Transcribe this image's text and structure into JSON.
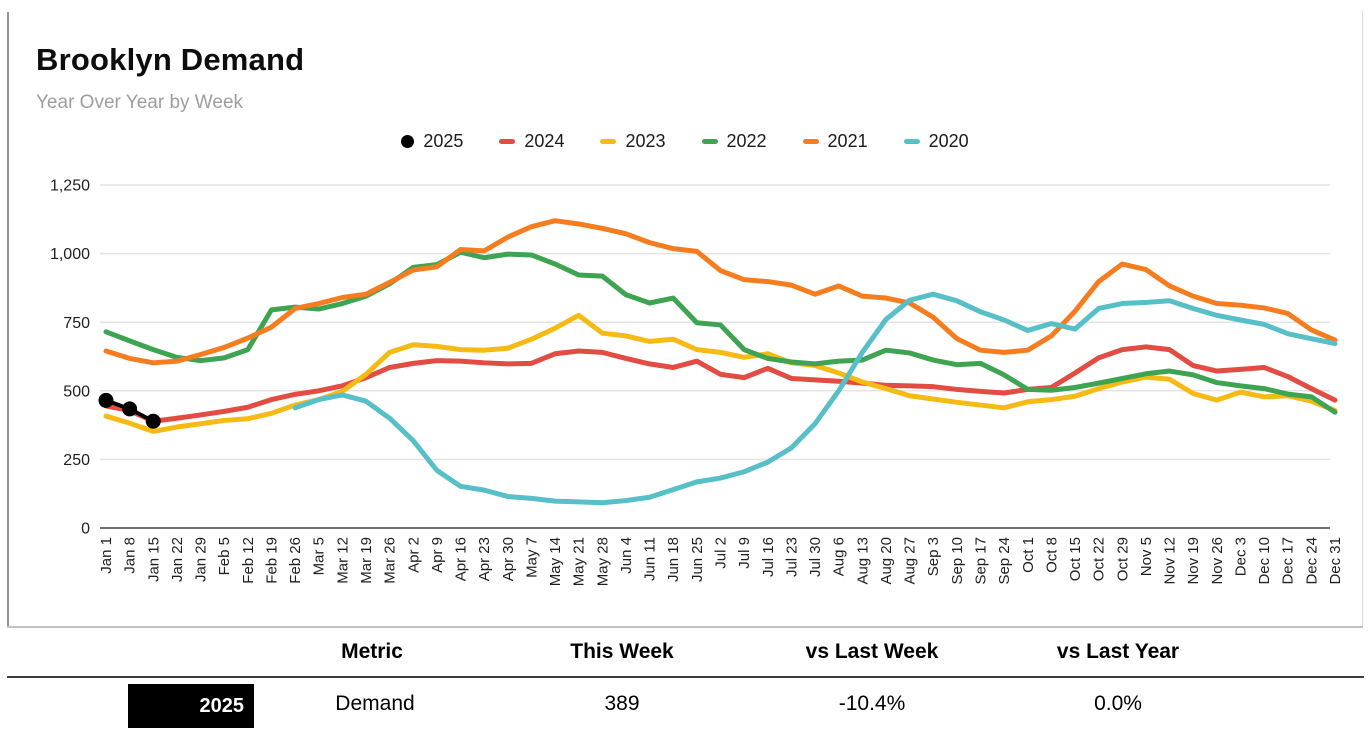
{
  "card": {
    "title": "Brooklyn Demand",
    "subtitle": "Year Over Year by Week"
  },
  "colors": {
    "y2025": "#000000",
    "y2024": "#e24c42",
    "y2023": "#f5ba14",
    "y2022": "#3fa452",
    "y2021": "#f57d20",
    "y2020": "#56bfc8",
    "gridline": "#e4e4e4",
    "axis": "#6e6e6e",
    "tick_text": "#1f1f1f"
  },
  "chart_data": {
    "type": "line",
    "title": "Brooklyn Demand",
    "subtitle": "Year Over Year by Week",
    "grid": "horizontal",
    "legend_position": "top-center",
    "ylim": [
      0,
      1250
    ],
    "y_ticks": [
      {
        "value": 0,
        "label": "0"
      },
      {
        "value": 250,
        "label": "250"
      },
      {
        "value": 500,
        "label": "500"
      },
      {
        "value": 750,
        "label": "750"
      },
      {
        "value": 1000,
        "label": "1,000"
      },
      {
        "value": 1250,
        "label": "1,250"
      }
    ],
    "x_labels": [
      "Jan 1",
      "Jan 8",
      "Jan 15",
      "Jan 22",
      "Jan 29",
      "Feb 5",
      "Feb 12",
      "Feb 19",
      "Feb 26",
      "Mar 5",
      "Mar 12",
      "Mar 19",
      "Mar 26",
      "Apr 2",
      "Apr 9",
      "Apr 16",
      "Apr 23",
      "Apr 30",
      "May 7",
      "May 14",
      "May 21",
      "May 28",
      "Jun 4",
      "Jun 11",
      "Jun 18",
      "Jun 25",
      "Jul 2",
      "Jul 9",
      "Jul 16",
      "Jul 23",
      "Jul 30",
      "Aug 6",
      "Aug 13",
      "Aug 20",
      "Aug 27",
      "Sep 3",
      "Sep 10",
      "Sep 17",
      "Sep 24",
      "Oct 1",
      "Oct 8",
      "Oct 15",
      "Oct 22",
      "Oct 29",
      "Nov 5",
      "Nov 12",
      "Nov 19",
      "Nov 26",
      "Dec 3",
      "Dec 10",
      "Dec 17",
      "Dec 24",
      "Dec 31"
    ],
    "series": [
      {
        "name": "2025",
        "color": "#000000",
        "marker": "circle",
        "draw_points": true,
        "values": [
          465,
          434,
          389,
          null,
          null,
          null,
          null,
          null,
          null,
          null,
          null,
          null,
          null,
          null,
          null,
          null,
          null,
          null,
          null,
          null,
          null,
          null,
          null,
          null,
          null,
          null,
          null,
          null,
          null,
          null,
          null,
          null,
          null,
          null,
          null,
          null,
          null,
          null,
          null,
          null,
          null,
          null,
          null,
          null,
          null,
          null,
          null,
          null,
          null,
          null,
          null,
          null,
          null
        ]
      },
      {
        "name": "2024",
        "color": "#e24c42",
        "marker": "dash",
        "draw_points": false,
        "values": [
          445,
          428,
          389,
          400,
          412,
          425,
          440,
          468,
          487,
          500,
          518,
          548,
          585,
          600,
          610,
          608,
          602,
          598,
          600,
          635,
          645,
          640,
          618,
          598,
          585,
          608,
          560,
          548,
          582,
          545,
          540,
          535,
          528,
          520,
          518,
          515,
          505,
          498,
          492,
          505,
          512,
          565,
          620,
          650,
          660,
          650,
          592,
          572,
          578,
          585,
          552,
          508,
          466
        ]
      },
      {
        "name": "2023",
        "color": "#f5ba14",
        "marker": "dash",
        "draw_points": false,
        "values": [
          408,
          382,
          352,
          368,
          380,
          392,
          398,
          418,
          448,
          468,
          498,
          560,
          640,
          668,
          662,
          650,
          648,
          655,
          688,
          728,
          775,
          710,
          700,
          680,
          688,
          650,
          640,
          622,
          635,
          602,
          592,
          565,
          532,
          508,
          482,
          470,
          458,
          448,
          438,
          460,
          468,
          480,
          508,
          532,
          550,
          542,
          490,
          466,
          495,
          478,
          482,
          462,
          428
        ]
      },
      {
        "name": "2022",
        "color": "#3fa452",
        "marker": "dash",
        "draw_points": false,
        "values": [
          715,
          682,
          650,
          622,
          610,
          620,
          650,
          795,
          805,
          798,
          818,
          845,
          890,
          950,
          960,
          1005,
          985,
          998,
          995,
          962,
          922,
          918,
          850,
          820,
          838,
          748,
          740,
          650,
          618,
          605,
          598,
          608,
          612,
          648,
          638,
          612,
          595,
          600,
          558,
          505,
          502,
          512,
          528,
          545,
          562,
          572,
          558,
          530,
          518,
          508,
          488,
          478,
          422
        ]
      },
      {
        "name": "2021",
        "color": "#f57d20",
        "marker": "dash",
        "draw_points": false,
        "values": [
          645,
          618,
          602,
          608,
          632,
          658,
          692,
          732,
          800,
          818,
          840,
          852,
          895,
          940,
          952,
          1015,
          1010,
          1060,
          1098,
          1120,
          1108,
          1092,
          1072,
          1040,
          1018,
          1008,
          938,
          905,
          898,
          885,
          852,
          882,
          845,
          838,
          820,
          768,
          690,
          648,
          640,
          648,
          700,
          790,
          898,
          962,
          942,
          882,
          845,
          818,
          812,
          802,
          782,
          722,
          685
        ]
      },
      {
        "name": "2020",
        "color": "#56bfc8",
        "marker": "dash",
        "draw_points": false,
        "values": [
          null,
          null,
          null,
          null,
          null,
          null,
          null,
          null,
          438,
          468,
          485,
          462,
          400,
          318,
          210,
          152,
          138,
          115,
          108,
          98,
          95,
          92,
          100,
          112,
          140,
          168,
          182,
          205,
          240,
          292,
          380,
          500,
          640,
          760,
          830,
          852,
          828,
          788,
          758,
          720,
          745,
          725,
          800,
          818,
          822,
          828,
          800,
          775,
          758,
          742,
          708,
          690,
          672
        ]
      }
    ],
    "draw_order": [
      "2024",
      "2023",
      "2022",
      "2021",
      "2020",
      "2025"
    ]
  },
  "table": {
    "columns": [
      "Metric",
      "This Week",
      "vs Last Week",
      "vs Last Year"
    ],
    "row": {
      "badge": "2025",
      "metric": "Demand",
      "this_week": "389",
      "vs_last_week": "-10.4%",
      "vs_last_year": "0.0%"
    }
  }
}
